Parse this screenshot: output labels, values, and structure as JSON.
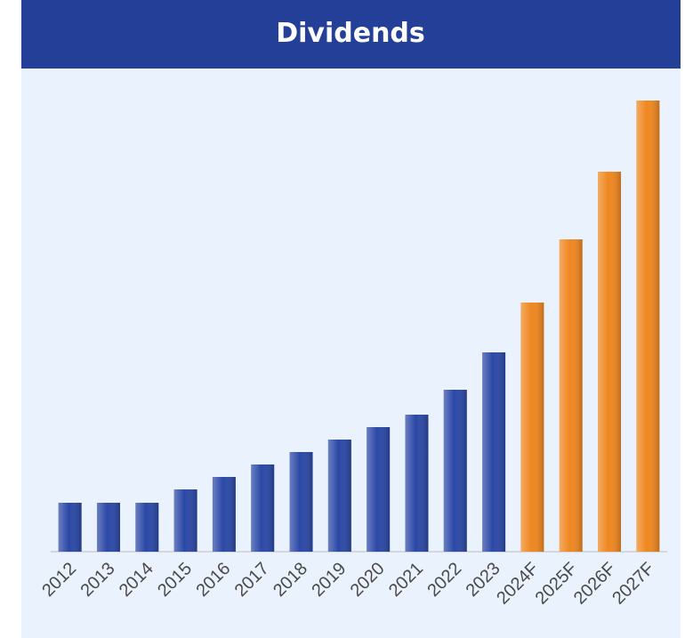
{
  "chart_data": {
    "type": "bar",
    "title": "Dividends",
    "categories": [
      "2012",
      "2013",
      "2014",
      "2015",
      "2016",
      "2017",
      "2018",
      "2019",
      "2020",
      "2021",
      "2022",
      "2023",
      "2024F",
      "2025F",
      "2026F",
      "2027F"
    ],
    "values": [
      55,
      55,
      55,
      70,
      84,
      98,
      112,
      126,
      140,
      154,
      182,
      224,
      280,
      351,
      427,
      507
    ],
    "colors": [
      "#2b48a6",
      "#2b48a6",
      "#2b48a6",
      "#2b48a6",
      "#2b48a6",
      "#2b48a6",
      "#2b48a6",
      "#2b48a6",
      "#2b48a6",
      "#2b48a6",
      "#2b48a6",
      "#2b48a6",
      "#ef8720",
      "#ef8720",
      "#ef8720",
      "#ef8720"
    ],
    "ylim": [
      0,
      520
    ]
  }
}
